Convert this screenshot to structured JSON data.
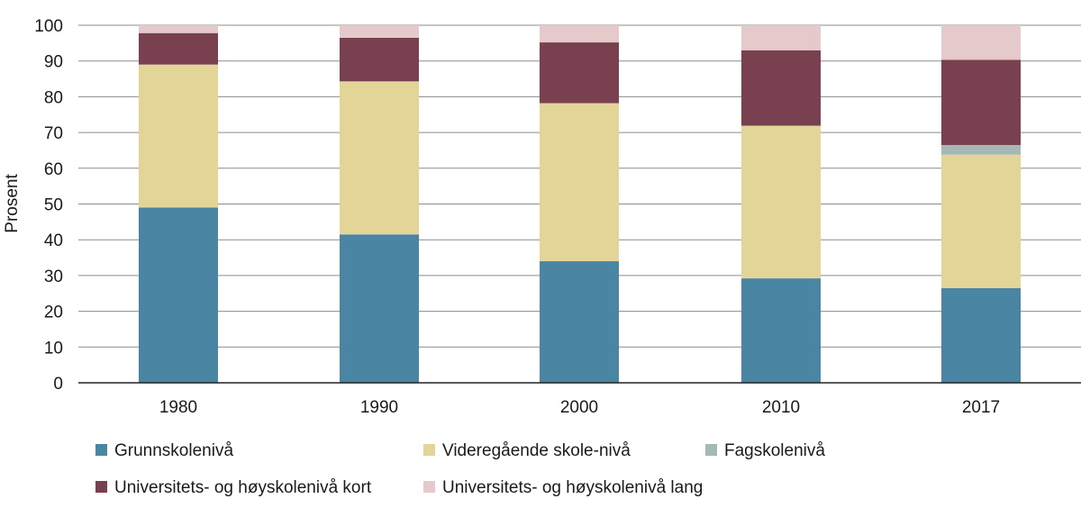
{
  "chart_data": {
    "type": "bar",
    "stacked": true,
    "title": "",
    "xlabel": "",
    "ylabel": "Prosent",
    "ylim": [
      0,
      100
    ],
    "yticks": [
      0,
      10,
      20,
      30,
      40,
      50,
      60,
      70,
      80,
      90,
      100
    ],
    "grid": true,
    "legend_position": "bottom",
    "categories": [
      "1980",
      "1990",
      "2000",
      "2010",
      "2017"
    ],
    "series": [
      {
        "name": "Grunnskolenivå",
        "color": "#4a86a4",
        "values": [
          49,
          41.5,
          34,
          29.2,
          26.5
        ]
      },
      {
        "name": "Videregående skole-nivå",
        "color": "#e2d597",
        "values": [
          40,
          42.8,
          44.2,
          42.7,
          37.3
        ]
      },
      {
        "name": "Fagskolenivå",
        "color": "#a4b9b5",
        "values": [
          0,
          0,
          0,
          0,
          2.7
        ]
      },
      {
        "name": "Universitets- og høyskolenivå kort",
        "color": "#79414f",
        "values": [
          8.8,
          12.2,
          17,
          21.1,
          23.8
        ]
      },
      {
        "name": "Universitets- og høyskolenivå lang",
        "color": "#e6c9ca",
        "values": [
          2.2,
          3.5,
          4.8,
          7,
          9.7
        ]
      }
    ]
  }
}
